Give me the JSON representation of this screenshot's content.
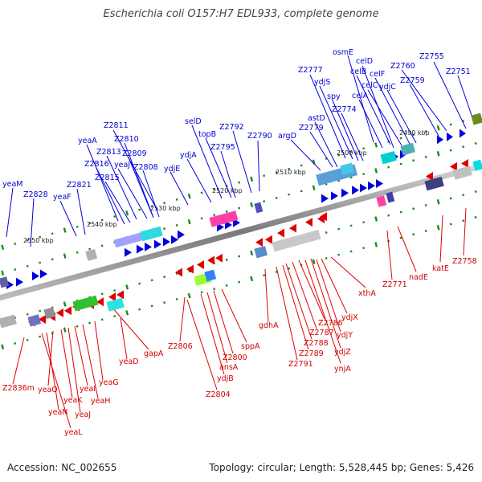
{
  "title": "Escherichia coli O157:H7 EDL933, complete genome",
  "footer": {
    "accession": "Accession: NC_002655",
    "topology": "Topology: circular; Length: 5,528,445 bp; Genes: 5,426"
  },
  "colors": {
    "forward": "#0000e0",
    "reverse": "#e00000",
    "backbone": "#888888",
    "tick": "#1a8a1a"
  },
  "scale_labels": [
    "2490 kbp",
    "2500 kbp",
    "2510 kbp",
    "2520 kbp",
    "2530 kbp",
    "2540 kbp",
    "2550 kbp"
  ],
  "forward_genes": [
    "osmE",
    "celD",
    "celB",
    "celF",
    "Z2760",
    "Z2755",
    "celC",
    "ydjC",
    "Z2759",
    "Z2751",
    "Z2777",
    "ydjS",
    "spy",
    "celA",
    "Z2774",
    "astD",
    "Z2779",
    "argD",
    "Z2792",
    "Z2790",
    "selD",
    "topB",
    "Z2795",
    "ydjA",
    "ydjE",
    "Z2811",
    "Z2810",
    "yeaA",
    "Z2813",
    "Z2809",
    "Z2816",
    "yeaJ",
    "Z2808",
    "Z2815",
    "yeaM",
    "Z2828",
    "Z2821",
    "yeaF"
  ],
  "reverse_genes": [
    "Z2758",
    "katE",
    "nadE",
    "Z2771",
    "xthA",
    "ydjX",
    "ydjY",
    "ydjZ",
    "ynjA",
    "Z2786",
    "Z2787",
    "Z2788",
    "Z2789",
    "Z2791",
    "gdhA",
    "sppA",
    "Z2800",
    "ansA",
    "ydjB",
    "Z2806",
    "Z2804",
    "gapA",
    "yeaD",
    "yeaG",
    "yeaH",
    "yeaI",
    "yeaJ",
    "yeaK",
    "yeaO",
    "yeaN",
    "yeaL",
    "Z2836m"
  ]
}
